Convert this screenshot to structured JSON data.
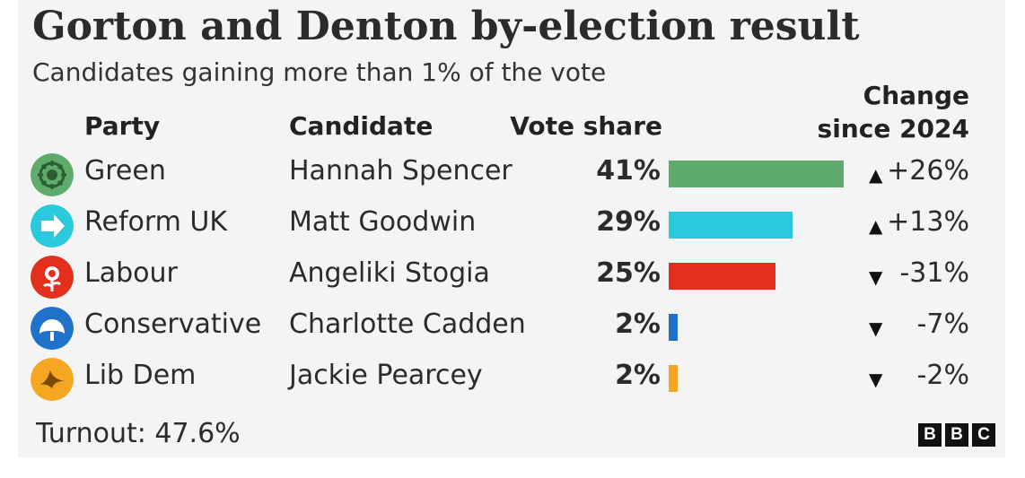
{
  "title": "Gorton and Denton by-election result",
  "subtitle": "Candidates gaining more than 1% of the vote",
  "headers": {
    "party": "Party",
    "candidate": "Candidate",
    "vote_share": "Vote share",
    "change_line1": "Change",
    "change_line2": "since 2024"
  },
  "chart_data": {
    "type": "bar",
    "title": "Gorton and Denton by-election result",
    "subtitle": "Candidates gaining more than 1% of the vote",
    "categories": [
      "Green",
      "Reform UK",
      "Labour",
      "Conservative",
      "Lib Dem"
    ],
    "candidates": [
      "Hannah Spencer",
      "Matt Goodwin",
      "Angeliki Stogia",
      "Charlotte Cadden",
      "Jackie Pearcey"
    ],
    "values": [
      41,
      29,
      25,
      2,
      2
    ],
    "value_labels": [
      "41%",
      "29%",
      "25%",
      "2%",
      "2%"
    ],
    "change_since_2024": [
      26,
      13,
      -31,
      -7,
      -2
    ],
    "change_labels": [
      "+26%",
      "+13%",
      "-31%",
      "-7%",
      "-2%"
    ],
    "colors": [
      "#5fab6c",
      "#2bc9dc",
      "#e3301d",
      "#1f71c9",
      "#f5a623"
    ],
    "xlim": [
      0,
      41
    ]
  },
  "rows": [
    {
      "party": "Green",
      "candidate": "Hannah Spencer",
      "share": "41%",
      "direction": "up",
      "arrow": "▲",
      "change": "+26%",
      "color": "#5fab6c",
      "logo": "green-party-logo-icon"
    },
    {
      "party": "Reform UK",
      "candidate": "Matt Goodwin",
      "share": "29%",
      "direction": "up",
      "arrow": "▲",
      "change": "+13%",
      "color": "#2bc9dc",
      "logo": "reform-uk-logo-icon"
    },
    {
      "party": "Labour",
      "candidate": "Angeliki Stogia",
      "share": "25%",
      "direction": "down",
      "arrow": "▼",
      "change": "-31%",
      "color": "#e3301d",
      "logo": "labour-rose-logo-icon"
    },
    {
      "party": "Conservative",
      "candidate": "Charlotte Cadden",
      "share": "2%",
      "direction": "down",
      "arrow": "▼",
      "change": "-7%",
      "color": "#1f71c9",
      "logo": "conservative-tree-logo-icon"
    },
    {
      "party": "Lib Dem",
      "candidate": "Jackie Pearcey",
      "share": "2%",
      "direction": "down",
      "arrow": "▼",
      "change": "-2%",
      "color": "#f5a623",
      "logo": "lib-dem-bird-logo-icon"
    }
  ],
  "footer": {
    "turnout": "Turnout: 47.6%",
    "brand": [
      "B",
      "B",
      "C"
    ]
  }
}
